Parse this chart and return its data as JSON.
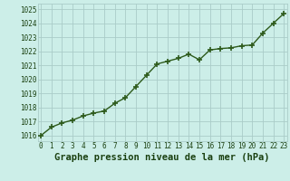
{
  "x": [
    0,
    1,
    2,
    3,
    4,
    5,
    6,
    7,
    8,
    9,
    10,
    11,
    12,
    13,
    14,
    15,
    16,
    17,
    18,
    19,
    20,
    21,
    22,
    23
  ],
  "y": [
    1016.0,
    1016.6,
    1016.9,
    1017.1,
    1017.4,
    1017.6,
    1017.75,
    1018.3,
    1018.7,
    1019.5,
    1020.3,
    1021.1,
    1021.3,
    1021.5,
    1021.8,
    1021.4,
    1022.1,
    1022.2,
    1022.25,
    1022.4,
    1022.45,
    1023.3,
    1024.0,
    1024.7
  ],
  "line_color": "#2d5a1b",
  "marker_color": "#2d5a1b",
  "bg_color": "#cceee8",
  "grid_color": "#aaccc8",
  "xlabel": "Graphe pression niveau de la mer (hPa)",
  "xlabel_fontsize": 7.5,
  "xlabel_color": "#1a4010",
  "ytick_labels": [
    "1016",
    "1017",
    "1018",
    "1019",
    "1020",
    "1021",
    "1022",
    "1023",
    "1024",
    "1025"
  ],
  "ytick_values": [
    1016,
    1017,
    1018,
    1019,
    1020,
    1021,
    1022,
    1023,
    1024,
    1025
  ],
  "ylim": [
    1015.6,
    1025.4
  ],
  "xlim": [
    -0.3,
    23.3
  ],
  "tick_fontsize": 5.5,
  "tick_color": "#1a4010",
  "marker_size": 4,
  "line_width": 1.0
}
